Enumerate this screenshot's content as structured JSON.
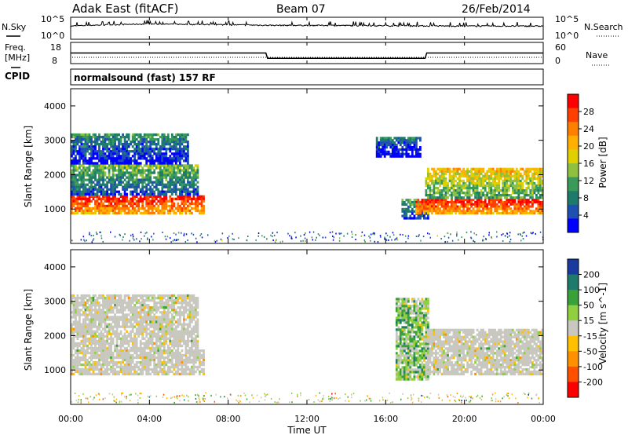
{
  "header": {
    "station": "Adak East (fitACF)",
    "beam": "Beam 07",
    "date": "26/Feb/2014"
  },
  "noise_panel": {
    "left_label": "N.Sky",
    "right_label": "N.Search",
    "left_ticks": [
      "10^5",
      "10^0"
    ],
    "right_ticks": [
      "10^5",
      "10^0"
    ]
  },
  "freq_panel": {
    "left_label_1": "Freq.",
    "left_label_2": "[MHz]",
    "left_ticks": [
      "18",
      "8"
    ],
    "right_label": "Nave",
    "right_ticks": [
      "60",
      "0"
    ]
  },
  "cpid_label": "CPID",
  "mode_label": "normalsound (fast) 157 RF",
  "x_axis": {
    "title": "Time UT",
    "ticks": [
      "00:00",
      "04:00",
      "08:00",
      "12:00",
      "16:00",
      "20:00",
      "00:00"
    ]
  },
  "power_panel": {
    "ylabel": "Slant Range [km]",
    "yticks": [
      "4000",
      "3000",
      "2000",
      "1000"
    ],
    "colorbar_title": "Power [dB]",
    "colorbar_ticks": [
      "28",
      "24",
      "20",
      "16",
      "12",
      "8",
      "4"
    ],
    "colors": [
      "#ff0000",
      "#ff4000",
      "#ff8000",
      "#ffb000",
      "#e0d000",
      "#90c040",
      "#3a9a5a",
      "#1e7a6a",
      "#1e50b4",
      "#0000ff"
    ]
  },
  "velocity_panel": {
    "ylabel": "Slant Range [km]",
    "yticks": [
      "4000",
      "3000",
      "2000",
      "1000"
    ],
    "colorbar_title": "Velocity [m s^-1]",
    "colorbar_ticks": [
      "200",
      "100",
      "50",
      "15",
      "-15",
      "-50",
      "-100",
      "-200"
    ],
    "colors": [
      "#1a3aa0",
      "#1e7a6a",
      "#3aa03a",
      "#90d040",
      "#c8c8c0",
      "#ffc000",
      "#ff9000",
      "#ff5000",
      "#ff0000"
    ]
  },
  "chart_data": [
    {
      "type": "line",
      "title": "N.Sky / N.Search",
      "x": [
        "00:00",
        "04:00",
        "08:00",
        "10:00",
        "12:00",
        "16:00",
        "20:00",
        "24:00"
      ],
      "series": [
        {
          "name": "N.Sky",
          "values": [
            1000,
            3000,
            2000,
            1500,
            1500,
            1200,
            1000,
            1000
          ]
        }
      ],
      "ylim": [
        1,
        100000
      ],
      "scale": "log"
    },
    {
      "type": "line",
      "title": "Freq. [MHz]",
      "x": [
        "00:00",
        "09:55",
        "10:00",
        "18:00",
        "18:05",
        "24:00"
      ],
      "series": [
        {
          "name": "Freq.",
          "values": [
            13,
            13,
            10.5,
            10.5,
            13,
            13
          ]
        }
      ],
      "ylim": [
        8,
        18
      ]
    },
    {
      "type": "heatmap",
      "title": "Power [dB]",
      "xlabel": "Time UT",
      "ylabel": "Slant Range [km]",
      "xlim": [
        0,
        24
      ],
      "ylim": [
        0,
        4500
      ],
      "zlim": [
        0,
        32
      ],
      "bands": [
        {
          "t": [
            0,
            6.8
          ],
          "range_km": [
            850,
            1400
          ],
          "power_db": 30
        },
        {
          "t": [
            0,
            6.5
          ],
          "range_km": [
            1400,
            2300
          ],
          "power_db": 14
        },
        {
          "t": [
            0,
            6.0
          ],
          "range_km": [
            2300,
            3200
          ],
          "power_db": 10
        },
        {
          "t": [
            15.5,
            17.8
          ],
          "range_km": [
            2500,
            3100
          ],
          "power_db": 8
        },
        {
          "t": [
            16.8,
            18.2
          ],
          "range_km": [
            700,
            1300
          ],
          "power_db": 12
        },
        {
          "t": [
            17.5,
            24
          ],
          "range_km": [
            850,
            1300
          ],
          "power_db": 30
        },
        {
          "t": [
            18.0,
            24
          ],
          "range_km": [
            1300,
            2200
          ],
          "power_db": 20
        }
      ]
    },
    {
      "type": "heatmap",
      "title": "Velocity [m s^-1]",
      "xlabel": "Time UT",
      "ylabel": "Slant Range [km]",
      "xlim": [
        0,
        24
      ],
      "ylim": [
        0,
        4500
      ],
      "zlim": [
        -200,
        200
      ],
      "bands": [
        {
          "t": [
            0,
            6.8
          ],
          "range_km": [
            850,
            1600
          ],
          "velocity": 0
        },
        {
          "t": [
            0,
            6.5
          ],
          "range_km": [
            1600,
            3200
          ],
          "velocity": 0
        },
        {
          "t": [
            16.5,
            18.2
          ],
          "range_km": [
            700,
            3100
          ],
          "velocity": 50
        },
        {
          "t": [
            18.0,
            24
          ],
          "range_km": [
            850,
            2200
          ],
          "velocity": 0
        }
      ]
    }
  ]
}
